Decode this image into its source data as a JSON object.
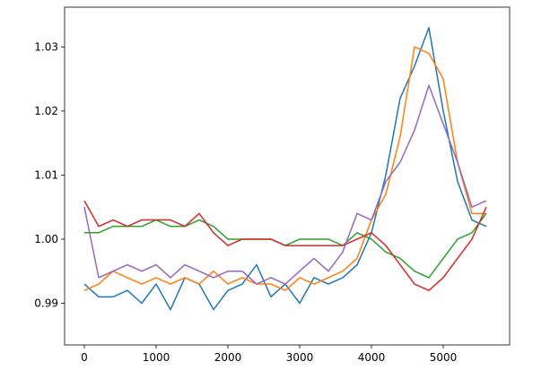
{
  "chart_data": {
    "type": "line",
    "x": [
      0,
      200,
      400,
      600,
      800,
      1000,
      1200,
      1400,
      1600,
      1800,
      2000,
      2200,
      2400,
      2600,
      2800,
      3000,
      3200,
      3400,
      3600,
      3800,
      4000,
      4200,
      4400,
      4600,
      4800,
      5000,
      5200,
      5400,
      5600
    ],
    "series": [
      {
        "color": "#1f77b4",
        "values": [
          0.993,
          0.991,
          0.991,
          0.992,
          0.99,
          0.993,
          0.989,
          0.994,
          0.993,
          0.989,
          0.992,
          0.993,
          0.996,
          0.991,
          0.993,
          0.99,
          0.994,
          0.993,
          0.994,
          0.996,
          1.001,
          1.01,
          1.022,
          1.027,
          1.033,
          1.02,
          1.009,
          1.003,
          1.002
        ]
      },
      {
        "color": "#ff7f0e",
        "values": [
          0.992,
          0.993,
          0.995,
          0.994,
          0.993,
          0.994,
          0.993,
          0.994,
          0.993,
          0.995,
          0.993,
          0.994,
          0.993,
          0.993,
          0.992,
          0.994,
          0.993,
          0.994,
          0.995,
          0.997,
          1.003,
          1.007,
          1.016,
          1.03,
          1.029,
          1.025,
          1.012,
          1.004,
          1.004
        ]
      },
      {
        "color": "#2ca02c",
        "values": [
          1.001,
          1.001,
          1.002,
          1.002,
          1.002,
          1.003,
          1.002,
          1.002,
          1.003,
          1.002,
          1.0,
          1.0,
          1.0,
          1.0,
          0.999,
          1.0,
          1.0,
          1.0,
          0.999,
          1.001,
          1.0,
          0.998,
          0.997,
          0.995,
          0.994,
          0.997,
          1.0,
          1.001,
          1.004
        ]
      },
      {
        "color": "#d62728",
        "values": [
          1.006,
          1.002,
          1.003,
          1.002,
          1.003,
          1.003,
          1.003,
          1.002,
          1.004,
          1.001,
          0.999,
          1.0,
          1.0,
          1.0,
          0.999,
          0.999,
          0.999,
          0.999,
          0.999,
          1.0,
          1.001,
          0.999,
          0.996,
          0.993,
          0.992,
          0.994,
          0.997,
          1.0,
          1.005
        ]
      },
      {
        "color": "#9467bd",
        "values": [
          1.005,
          0.994,
          0.995,
          0.996,
          0.995,
          0.996,
          0.994,
          0.996,
          0.995,
          0.994,
          0.995,
          0.995,
          0.993,
          0.994,
          0.993,
          0.995,
          0.997,
          0.995,
          0.998,
          1.004,
          1.003,
          1.009,
          1.012,
          1.017,
          1.024,
          1.018,
          1.012,
          1.005,
          1.006
        ]
      }
    ],
    "xlim": [
      -275,
      5925
    ],
    "xticks": [
      0,
      1000,
      2000,
      3000,
      4000,
      5000
    ],
    "ylim": [
      0.9835,
      1.0362
    ],
    "yticks": [
      0.99,
      {
        "value": 1,
        "label": "1.00"
      },
      1.01,
      1.02,
      1.03
    ]
  }
}
